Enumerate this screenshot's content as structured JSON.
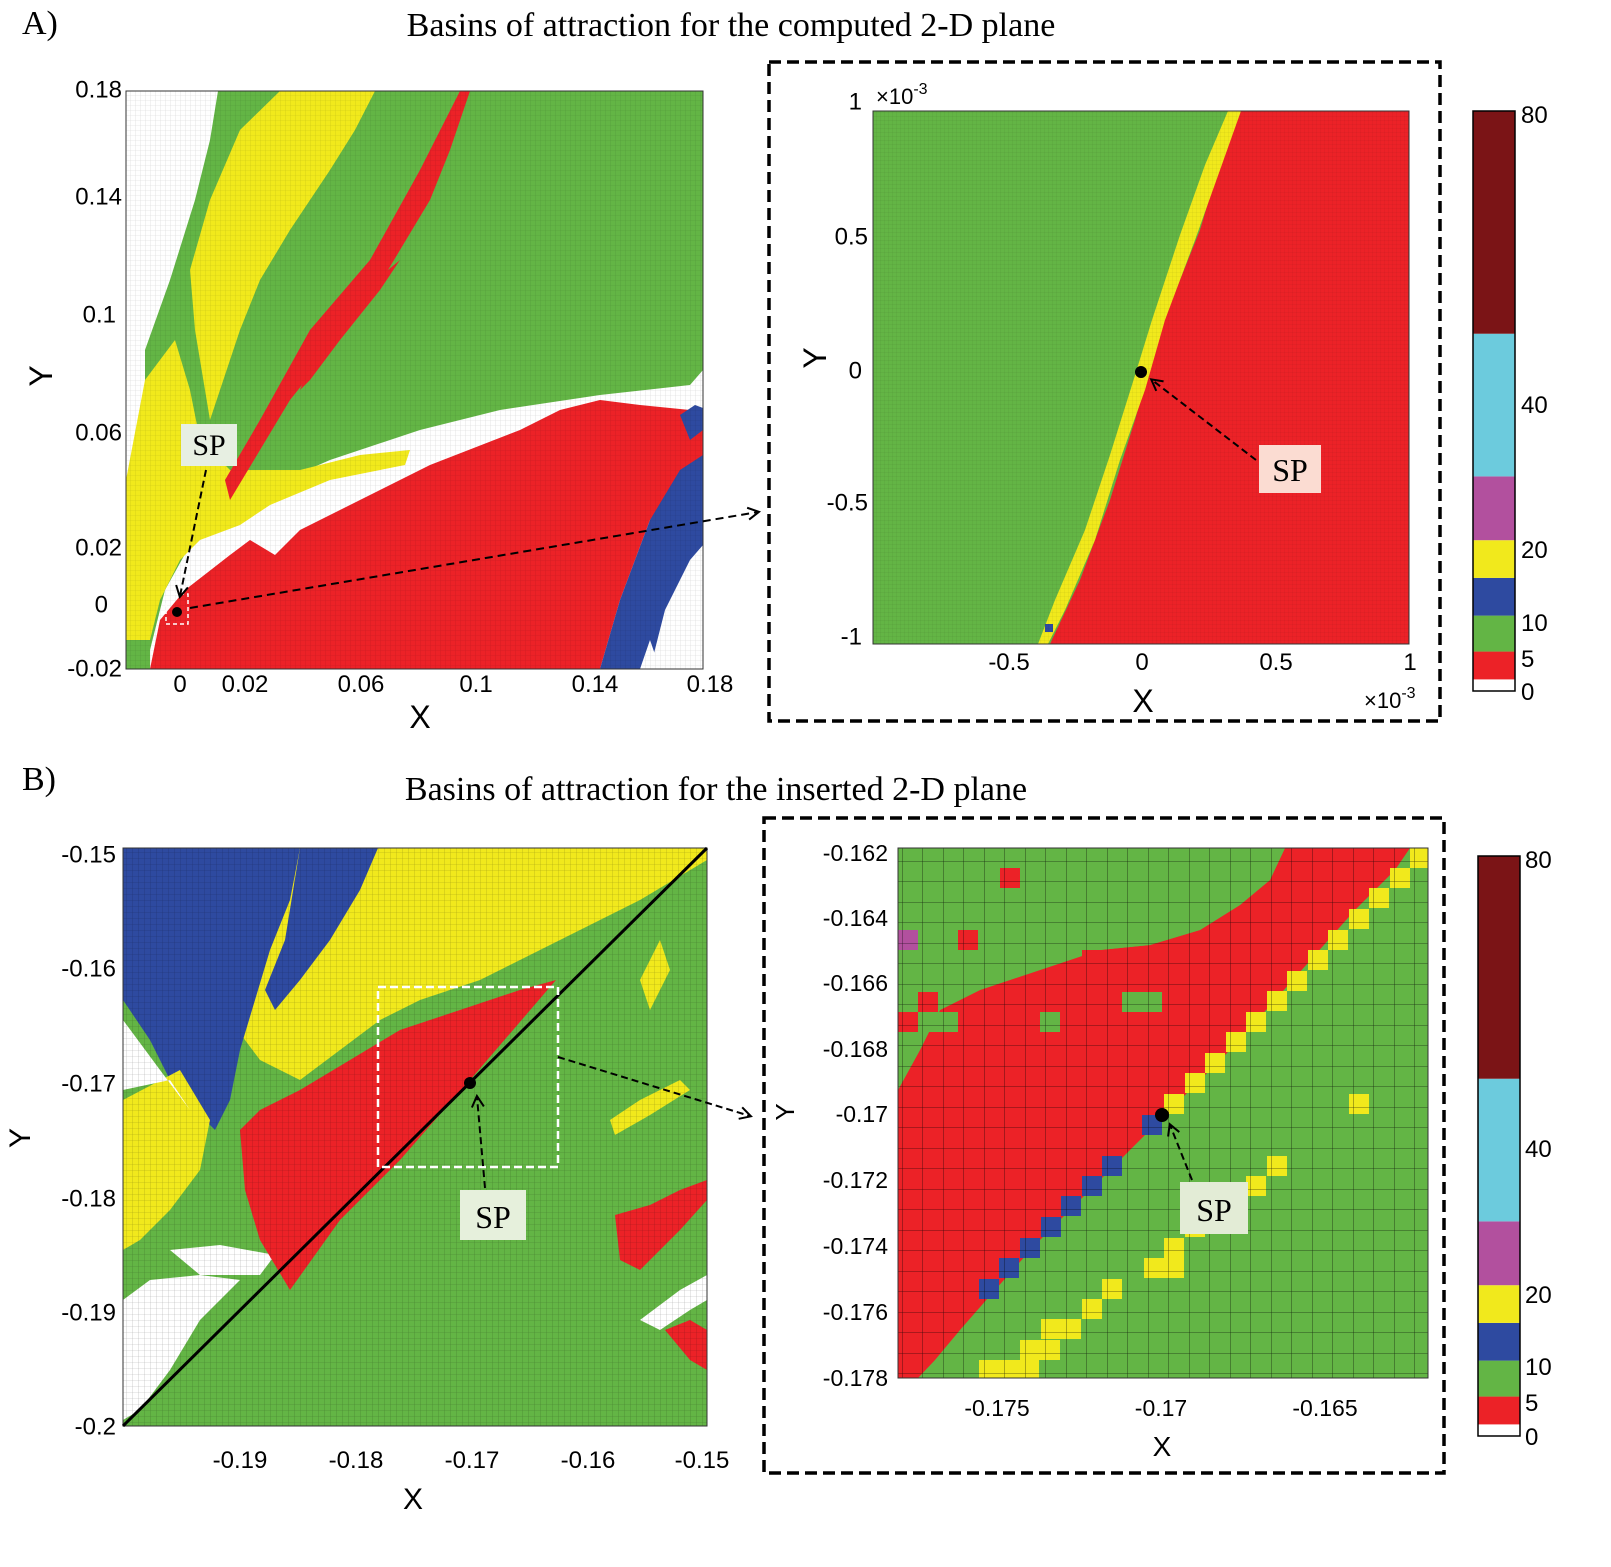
{
  "figure": {
    "colors": {
      "white": "#ffffff",
      "red": "#ec2227",
      "green": "#63b545",
      "blue": "#2e4aa0",
      "yellow": "#f1e91c",
      "magenta": "#b2509e",
      "cyan": "#6ccbdd",
      "maroon": "#7b1416"
    },
    "colorbar": {
      "tick_labels": [
        "80",
        "40",
        "20",
        "10",
        "5",
        "0"
      ],
      "bands": [
        {
          "from": 0,
          "to": 2,
          "color": "#ffffff"
        },
        {
          "from": 2,
          "to": 5,
          "color": "#ec2227"
        },
        {
          "from": 5,
          "to": 10,
          "color": "#63b545"
        },
        {
          "from": 10,
          "to": 15,
          "color": "#2e4aa0"
        },
        {
          "from": 15,
          "to": 20,
          "color": "#f1e91c"
        },
        {
          "from": 20,
          "to": 30,
          "color": "#b2509e"
        },
        {
          "from": 30,
          "to": 55,
          "color": "#6ccbdd"
        },
        {
          "from": 55,
          "to": 80,
          "color": "#7b1416"
        }
      ]
    }
  },
  "panels": [
    {
      "letter": "A)",
      "title": "Basins of attraction for the computed 2-D plane",
      "main": {
        "xlabel": "X",
        "ylabel": "Y",
        "xticks": [
          "0",
          "0.02",
          "0.06",
          "0.1",
          "0.14",
          "0.18"
        ],
        "yticks": [
          "0.18",
          "0.14",
          "0.1",
          "0.06",
          "0.02",
          "0",
          "-0.02"
        ],
        "sp_label": "SP"
      },
      "zoom": {
        "xlabel": "X",
        "ylabel": "Y",
        "xticks": [
          "-0.5",
          "0",
          "0.5",
          "1"
        ],
        "yticks": [
          "1",
          "0.5",
          "0",
          "-0.5",
          "-1"
        ],
        "x_multiplier": "×10",
        "x_exponent": "-3",
        "y_multiplier": "×10",
        "y_exponent": "-3",
        "sp_label": "SP"
      }
    },
    {
      "letter": "B)",
      "title": "Basins of attraction for the inserted 2-D plane",
      "main": {
        "xlabel": "X",
        "ylabel": "Y",
        "xticks": [
          "-0.19",
          "-0.18",
          "-0.17",
          "-0.16",
          "-0.15"
        ],
        "yticks": [
          "-0.15",
          "-0.16",
          "-0.17",
          "-0.18",
          "-0.19",
          "-0.2"
        ],
        "sp_label": "SP"
      },
      "zoom": {
        "xlabel": "X",
        "ylabel": "Y",
        "xticks": [
          "-0.175",
          "-0.17",
          "-0.165"
        ],
        "yticks": [
          "-0.162",
          "-0.164",
          "-0.166",
          "-0.168",
          "-0.17",
          "-0.172",
          "-0.174",
          "-0.176",
          "-0.178"
        ],
        "sp_label": "SP"
      }
    }
  ],
  "chart_data": [
    {
      "type": "heatmap",
      "title": "Basins of attraction for the computed 2-D plane",
      "xlabel": "X",
      "ylabel": "Y",
      "xlim": [
        -0.018,
        0.18
      ],
      "ylim": [
        -0.02,
        0.18
      ],
      "colorbar_range": [
        0,
        80
      ],
      "saddle_point": {
        "x": 0.0,
        "y": 0.0,
        "label": "SP"
      }
    },
    {
      "type": "heatmap",
      "xlabel": "X",
      "ylabel": "Y",
      "xlim": [
        -0.001,
        0.001
      ],
      "ylim": [
        -0.001,
        0.001
      ],
      "saddle_point": {
        "x": 0.0,
        "y": 0.0,
        "label": "SP"
      }
    },
    {
      "type": "heatmap",
      "title": "Basins of attraction for the inserted 2-D plane",
      "xlabel": "X",
      "ylabel": "Y",
      "xlim": [
        -0.2,
        -0.15
      ],
      "ylim": [
        -0.2,
        -0.15
      ],
      "colorbar_range": [
        0,
        80
      ],
      "saddle_point": {
        "x": -0.17,
        "y": -0.17,
        "label": "SP"
      }
    },
    {
      "type": "heatmap",
      "xlabel": "X",
      "ylabel": "Y",
      "xlim": [
        -0.178,
        -0.162
      ],
      "ylim": [
        -0.178,
        -0.162
      ],
      "saddle_point": {
        "x": -0.17,
        "y": -0.17,
        "label": "SP"
      }
    }
  ]
}
